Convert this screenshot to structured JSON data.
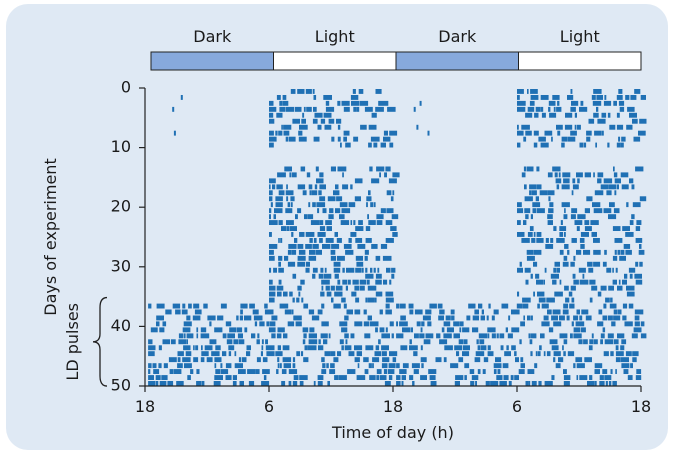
{
  "chart_data": {
    "type": "actogram",
    "xlabel": "Time of day (h)",
    "ylabel": "Days of experiment",
    "bracket_label": "LD pulses",
    "x_ticks": [
      "18",
      "6",
      "18",
      "6",
      "18"
    ],
    "y_ticks": [
      0,
      10,
      20,
      30,
      40,
      50
    ],
    "ylim": [
      0,
      50
    ],
    "x_range_hours": [
      0,
      48
    ],
    "lighting_bar": [
      {
        "label": "Dark",
        "phase": "dark",
        "start_h": 0,
        "end_h": 12
      },
      {
        "label": "Light",
        "phase": "light",
        "start_h": 12,
        "end_h": 24
      },
      {
        "label": "Dark",
        "phase": "dark",
        "start_h": 24,
        "end_h": 36
      },
      {
        "label": "Light",
        "phase": "light",
        "start_h": 36,
        "end_h": 48
      }
    ],
    "ld_pulses_days": [
      36,
      49
    ],
    "activity_color": "#1f70b4",
    "dark_bar_color": "#87a9dc",
    "light_bar_color": "#ffffff",
    "background_color": "#dfe9f4"
  }
}
